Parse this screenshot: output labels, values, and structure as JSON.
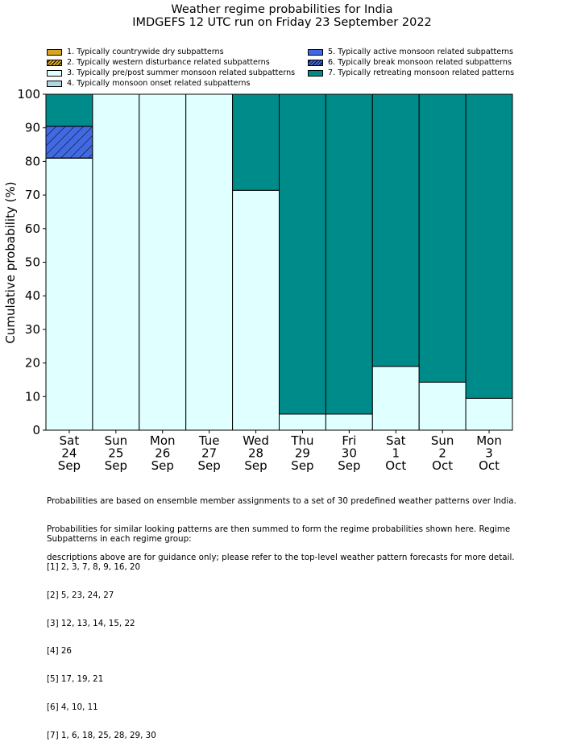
{
  "title": "Weather regime probabilities for India",
  "subtitle": "IMDGEFS 12 UTC run on Friday 23 September 2022",
  "legend": [
    {
      "label": "1. Typically countrywide dry subpatterns",
      "color": "#DAA520",
      "hatch": false
    },
    {
      "label": "2. Typically western disturbance related subpatterns",
      "color": "#DAA520",
      "hatch": true
    },
    {
      "label": "3. Typically pre/post summer monsoon related subpatterns",
      "color": "#E0FFFF",
      "hatch": false
    },
    {
      "label": "4. Typically monsoon onset related subpatterns",
      "color": "#ADD8E6",
      "hatch": false
    },
    {
      "label": "5. Typically active monsoon related subpatterns",
      "color": "#4169E1",
      "hatch": false
    },
    {
      "label": "6. Typically break monsoon related subpatterns",
      "color": "#4169E1",
      "hatch": true
    },
    {
      "label": "7. Typically retreating monsoon related patterns",
      "color": "#008B8B",
      "hatch": false
    }
  ],
  "chart_data": {
    "type": "bar",
    "stacked": true,
    "ylabel": "Cumulative probability (%)",
    "ylim": [
      0,
      100
    ],
    "yticks": [
      0,
      10,
      20,
      30,
      40,
      50,
      60,
      70,
      80,
      90,
      100
    ],
    "categories": [
      [
        "Sat",
        "24",
        "Sep"
      ],
      [
        "Sun",
        "25",
        "Sep"
      ],
      [
        "Mon",
        "26",
        "Sep"
      ],
      [
        "Tue",
        "27",
        "Sep"
      ],
      [
        "Wed",
        "28",
        "Sep"
      ],
      [
        "Thu",
        "29",
        "Sep"
      ],
      [
        "Fri",
        "30",
        "Sep"
      ],
      [
        "Sat",
        "1",
        "Oct"
      ],
      [
        "Sun",
        "2",
        "Oct"
      ],
      [
        "Mon",
        "3",
        "Oct"
      ]
    ],
    "series": [
      {
        "regime": 3,
        "values": [
          81,
          100,
          100,
          100,
          71.4,
          4.8,
          4.8,
          19,
          14.3,
          9.5
        ]
      },
      {
        "regime": 6,
        "values": [
          9.5,
          0,
          0,
          0,
          0,
          0,
          0,
          0,
          0,
          0
        ]
      },
      {
        "regime": 7,
        "values": [
          9.5,
          0,
          0,
          0,
          28.6,
          95.2,
          95.2,
          81,
          85.7,
          90.5
        ]
      }
    ]
  },
  "footnote": [
    "Probabilities are based on ensemble member assignments to a set of 30 predefined weather patterns over India.",
    "Probabilities for similar looking patterns are then summed to form the regime probabilities shown here. Regime",
    "descriptions above are for guidance only; please refer to the top-level weather pattern forecasts for more detail."
  ],
  "subpatterns_heading": "Subpatterns in each regime group:",
  "subpatterns": [
    "[1] 2, 3, 7, 8, 9, 16, 20",
    "[2] 5, 23, 24, 27",
    "[3] 12, 13, 14, 15, 22",
    "[4] 26",
    "[5] 17, 19, 21",
    "[6] 4, 10, 11",
    "[7] 1, 6, 18, 25, 28, 29, 30"
  ]
}
